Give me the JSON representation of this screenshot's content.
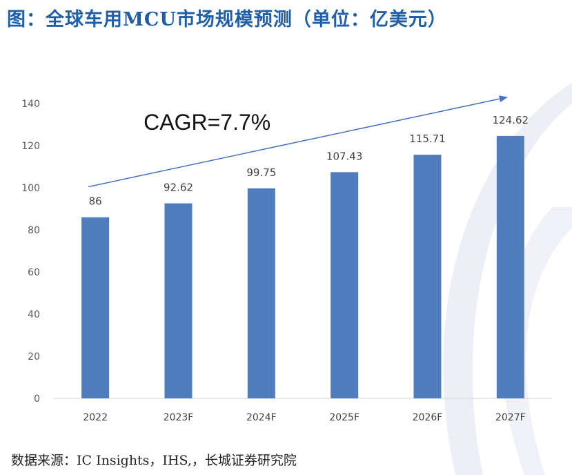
{
  "title": "图：全球车用MCU市场规模预测（单位：亿美元）",
  "source": "数据来源：IC Insights，IHS,，长城证券研究院",
  "colors": {
    "bar": "#4f7dbd",
    "title": "#1f5ea8",
    "arrow": "#4472c4",
    "grid": "#d9d9d9"
  },
  "chart_data": {
    "type": "bar",
    "title": "全球车用MCU市场规模预测（单位：亿美元）",
    "categories": [
      "2022",
      "2023F",
      "2024F",
      "2025F",
      "2026F",
      "2027F"
    ],
    "values": [
      86,
      92.62,
      99.75,
      107.43,
      115.71,
      124.62
    ],
    "data_labels": [
      "86",
      "92.62",
      "99.75",
      "107.43",
      "115.71",
      "124.62"
    ],
    "y_ticks": [
      0,
      20,
      40,
      60,
      80,
      100,
      120,
      140
    ],
    "ylim": [
      0,
      140
    ],
    "xlabel": "",
    "ylabel": "",
    "grid": false,
    "annotation": "CAGR=7.7%"
  }
}
